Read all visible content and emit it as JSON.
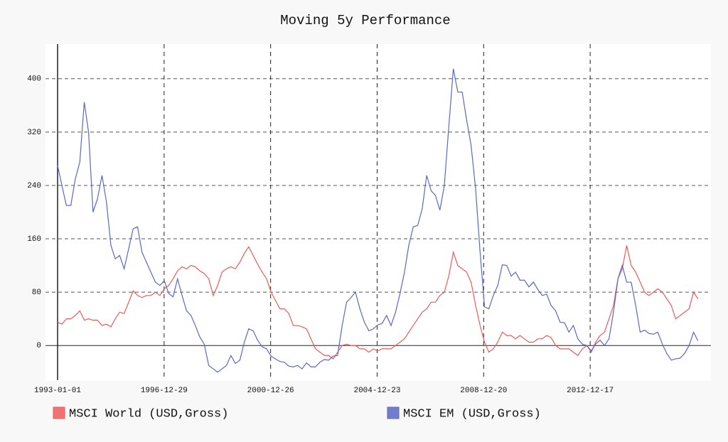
{
  "chart_data": {
    "type": "line",
    "title": "Moving 5y Performance",
    "step": true,
    "x": [
      "1993-01-01",
      "1993-03-01",
      "1993-05-01",
      "1993-07-01",
      "1993-09-01",
      "1993-11-01",
      "1994-01-01",
      "1994-03-01",
      "1994-05-01",
      "1994-07-01",
      "1994-09-01",
      "1994-11-01",
      "1995-01-01",
      "1995-03-01",
      "1995-05-01",
      "1995-07-01",
      "1995-09-01",
      "1995-11-01",
      "1996-01-01",
      "1996-03-01",
      "1996-05-01",
      "1996-07-01",
      "1996-09-01",
      "1996-11-01",
      "1997-01-01",
      "1997-03-01",
      "1997-05-01",
      "1997-07-01",
      "1997-09-01",
      "1997-11-01",
      "1998-01-01",
      "1998-03-01",
      "1998-05-01",
      "1998-07-01",
      "1998-09-01",
      "1998-11-01",
      "1999-01-01",
      "1999-03-01",
      "1999-05-01",
      "1999-07-01",
      "1999-09-01",
      "1999-11-01",
      "2000-01-01",
      "2000-03-01",
      "2000-05-01",
      "2000-07-01",
      "2000-09-01",
      "2000-11-01",
      "2001-01-01",
      "2001-03-01",
      "2001-05-01",
      "2001-07-01",
      "2001-09-01",
      "2001-11-01",
      "2002-01-01",
      "2002-03-01",
      "2002-05-01",
      "2002-07-01",
      "2002-09-01",
      "2002-11-01",
      "2003-01-01",
      "2003-03-01",
      "2003-05-01",
      "2003-07-01",
      "2003-09-01",
      "2003-11-01",
      "2004-01-01",
      "2004-03-01",
      "2004-05-01",
      "2004-07-01",
      "2004-09-01",
      "2004-11-01",
      "2005-01-01",
      "2005-03-01",
      "2005-05-01",
      "2005-07-01",
      "2005-09-01",
      "2005-11-01",
      "2006-01-01",
      "2006-03-01",
      "2006-05-01",
      "2006-07-01",
      "2006-09-01",
      "2006-11-01",
      "2007-01-01",
      "2007-03-01",
      "2007-05-01",
      "2007-07-01",
      "2007-09-01",
      "2007-11-01",
      "2008-01-01",
      "2008-03-01",
      "2008-05-01",
      "2008-07-01",
      "2008-09-01",
      "2008-11-01",
      "2009-01-01",
      "2009-03-01",
      "2009-05-01",
      "2009-07-01",
      "2009-09-01",
      "2009-11-01",
      "2010-01-01",
      "2010-03-01",
      "2010-05-01",
      "2010-07-01",
      "2010-09-01",
      "2010-11-01",
      "2011-01-01",
      "2011-03-01",
      "2011-05-01",
      "2011-07-01",
      "2011-09-01",
      "2011-11-01",
      "2012-01-01",
      "2012-03-01",
      "2012-05-01",
      "2012-07-01",
      "2012-09-01",
      "2012-11-01",
      "2013-01-01",
      "2013-03-01",
      "2013-05-01",
      "2013-07-01",
      "2013-09-01",
      "2013-11-01",
      "2014-01-01",
      "2014-03-01",
      "2014-05-01",
      "2014-07-01",
      "2014-09-01",
      "2014-11-01",
      "2015-01-01",
      "2015-03-01",
      "2015-05-01",
      "2015-07-01",
      "2015-09-01",
      "2015-11-01",
      "2016-01-01",
      "2016-03-01",
      "2016-05-01",
      "2016-07-01",
      "2016-09-01",
      "2016-11-01",
      "2017-01-01"
    ],
    "series": [
      {
        "name": "MSCI World (USD,Gross)",
        "color": "#ee5a5a",
        "values": [
          35,
          32,
          40,
          40,
          45,
          52,
          38,
          40,
          38,
          38,
          30,
          32,
          28,
          40,
          50,
          48,
          65,
          82,
          75,
          72,
          75,
          75,
          80,
          75,
          85,
          90,
          100,
          112,
          118,
          115,
          120,
          118,
          112,
          108,
          100,
          75,
          90,
          110,
          115,
          118,
          115,
          125,
          138,
          148,
          135,
          122,
          110,
          100,
          80,
          68,
          55,
          55,
          48,
          30,
          30,
          28,
          25,
          10,
          -5,
          -10,
          -15,
          -15,
          -20,
          -10,
          0,
          2,
          0,
          0,
          -5,
          -5,
          -10,
          -5,
          -8,
          -5,
          -5,
          -5,
          0,
          5,
          10,
          20,
          30,
          40,
          50,
          55,
          65,
          65,
          75,
          80,
          105,
          140,
          120,
          115,
          110,
          95,
          60,
          30,
          5,
          -10,
          -5,
          5,
          20,
          15,
          15,
          10,
          15,
          10,
          5,
          5,
          10,
          10,
          15,
          12,
          0,
          -5,
          -5,
          -5,
          -10,
          -15,
          -5,
          0,
          -10,
          5,
          15,
          20,
          40,
          60,
          100,
          115,
          150,
          120,
          110,
          95,
          80,
          75,
          80,
          85,
          80,
          70,
          60,
          40,
          45,
          50,
          55,
          80,
          70
        ]
      },
      {
        "name": "MSCI EM (USD,Gross)",
        "color": "#5b68c4",
        "values": [
          270,
          240,
          210,
          210,
          250,
          275,
          365,
          320,
          200,
          220,
          255,
          215,
          150,
          130,
          135,
          115,
          145,
          175,
          178,
          140,
          125,
          110,
          95,
          90,
          97,
          78,
          73,
          100,
          75,
          52,
          45,
          30,
          13,
          2,
          -30,
          -35,
          -40,
          -35,
          -30,
          -15,
          -27,
          -22,
          5,
          25,
          22,
          8,
          -2,
          -5,
          -16,
          -20,
          -24,
          -25,
          -31,
          -32,
          -30,
          -35,
          -26,
          -32,
          -32,
          -25,
          -21,
          -22,
          -16,
          -15,
          30,
          65,
          72,
          80,
          55,
          35,
          22,
          25,
          31,
          33,
          45,
          30,
          50,
          78,
          110,
          150,
          178,
          180,
          205,
          255,
          232,
          225,
          203,
          240,
          330,
          415,
          380,
          380,
          338,
          300,
          235,
          140,
          58,
          55,
          75,
          90,
          121,
          120,
          104,
          110,
          98,
          98,
          88,
          95,
          84,
          75,
          77,
          60,
          52,
          35,
          34,
          20,
          30,
          10,
          2,
          0,
          -8,
          2,
          8,
          0,
          10,
          50,
          100,
          120,
          95,
          95,
          60,
          20,
          23,
          18,
          17,
          20,
          2,
          -12,
          -22,
          -20,
          -19,
          -12,
          0,
          20,
          7
        ]
      }
    ],
    "xlim": [
      "1993-01-01",
      "2017-02-01"
    ],
    "xticks": [
      "1993-01-01",
      "1996-12-29",
      "2000-12-26",
      "2004-12-23",
      "2008-12-20",
      "2012-12-17"
    ],
    "ylim": [
      -52,
      452
    ],
    "yticks": [
      0,
      80,
      160,
      240,
      320,
      400
    ],
    "grid": true,
    "legend": "bottom"
  }
}
